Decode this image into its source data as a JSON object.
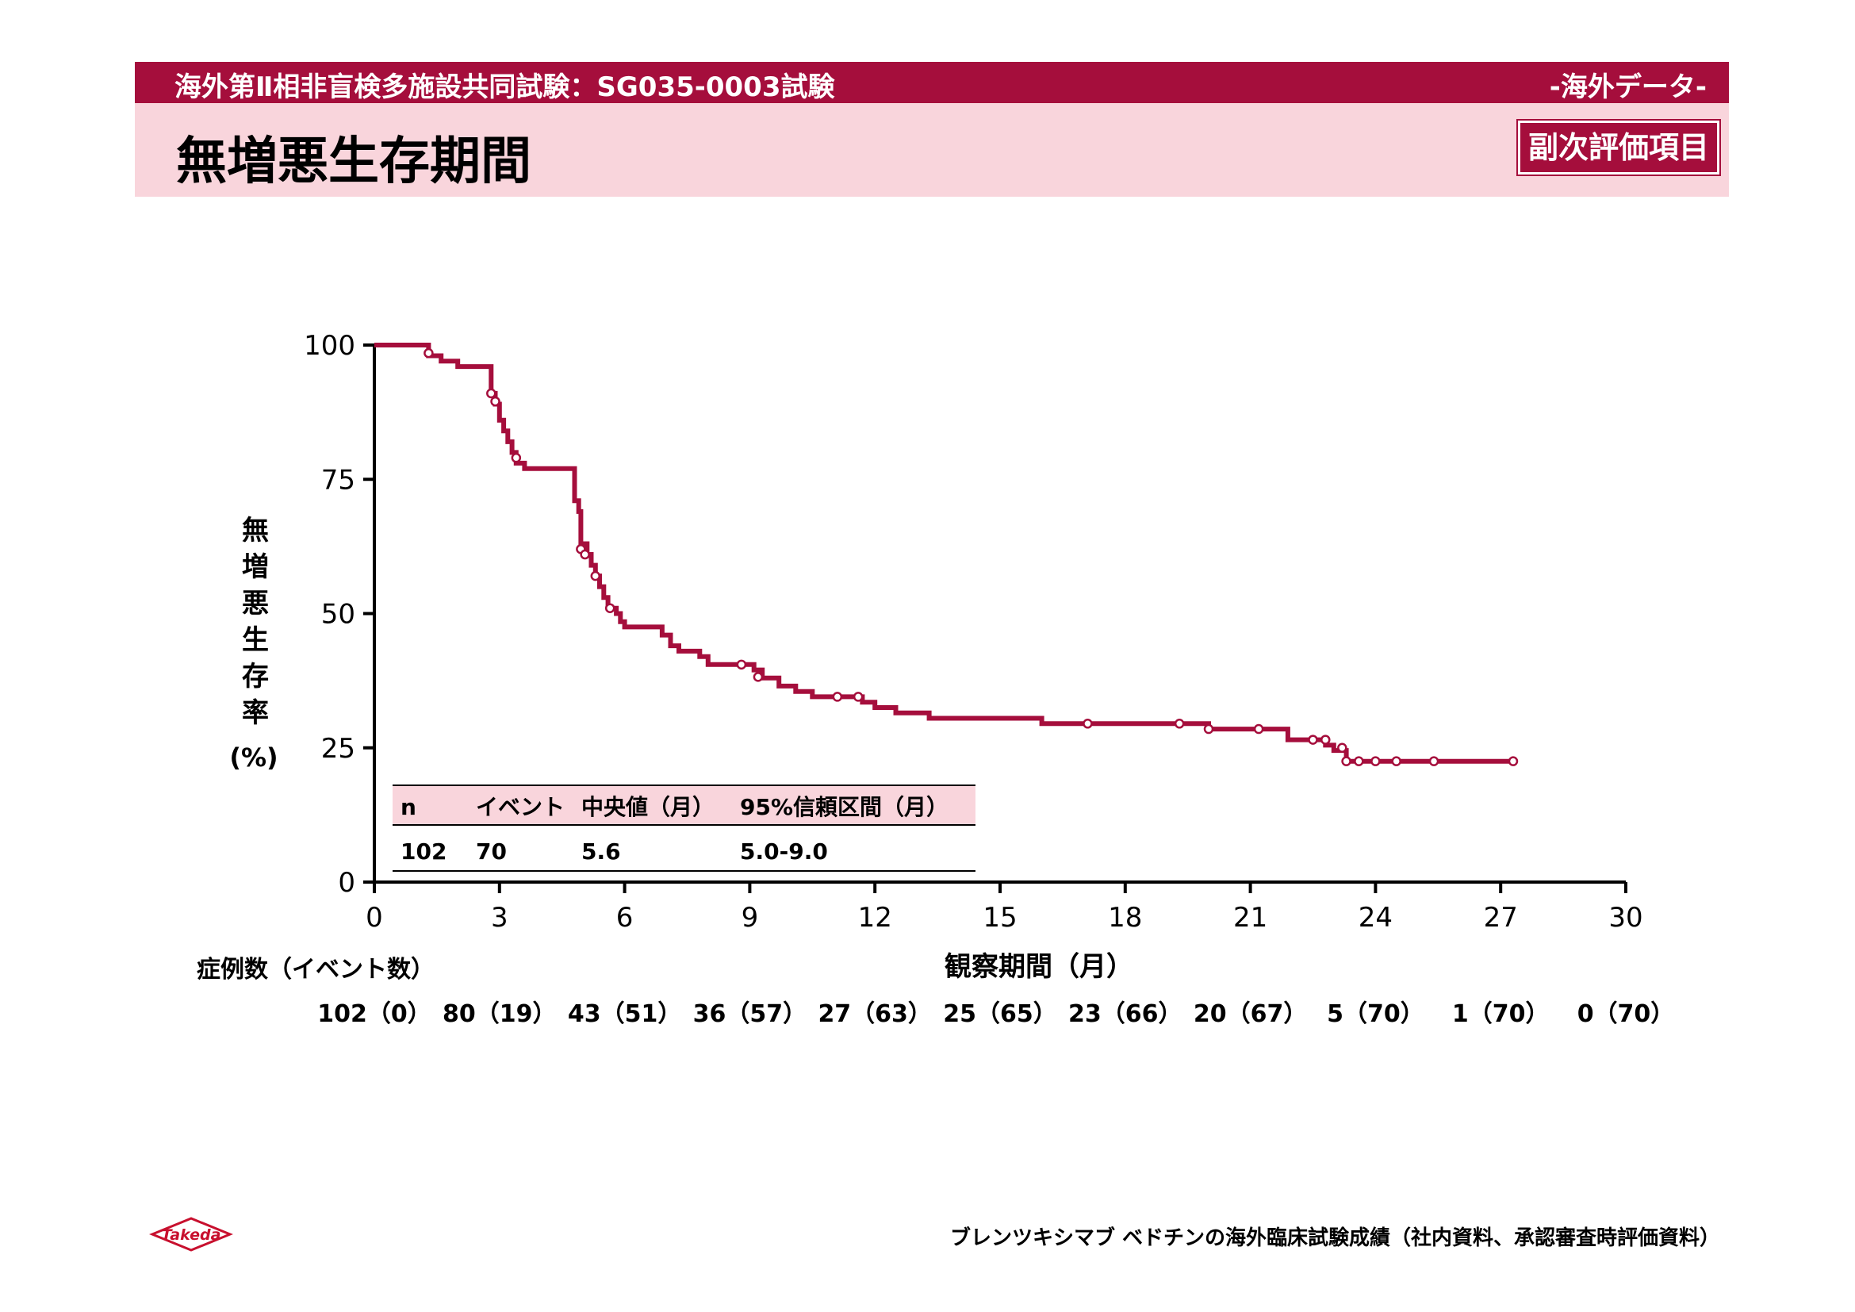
{
  "header": {
    "study": "海外第Ⅱ相非盲検多施設共同試験：SG035-0003試験",
    "tag": "-海外データ-",
    "title": "無増悪生存期間",
    "badge": "副次評価項目"
  },
  "chart_data": {
    "type": "line",
    "subtype": "kaplan-meier",
    "ylabel": "無増悪生存率",
    "ylabel_unit": "(%)",
    "xlabel": "観察期間（月）",
    "xlim": [
      0,
      30
    ],
    "ylim": [
      0,
      100
    ],
    "xticks": [
      0,
      3,
      6,
      9,
      12,
      15,
      18,
      21,
      24,
      27,
      30
    ],
    "yticks": [
      0,
      25,
      50,
      75,
      100
    ],
    "line_color": "#a50e3c",
    "series": [
      {
        "values": [
          [
            0,
            100
          ],
          [
            1.3,
            100
          ],
          [
            1.3,
            98
          ],
          [
            1.6,
            98
          ],
          [
            1.6,
            97
          ],
          [
            2.0,
            97
          ],
          [
            2.0,
            96
          ],
          [
            2.8,
            96
          ],
          [
            2.8,
            91
          ],
          [
            2.9,
            91
          ],
          [
            2.9,
            89
          ],
          [
            3.0,
            89
          ],
          [
            3.0,
            86
          ],
          [
            3.1,
            86
          ],
          [
            3.1,
            84
          ],
          [
            3.2,
            84
          ],
          [
            3.2,
            82
          ],
          [
            3.3,
            82
          ],
          [
            3.3,
            80
          ],
          [
            3.4,
            80
          ],
          [
            3.4,
            78
          ],
          [
            3.6,
            78
          ],
          [
            3.6,
            77
          ],
          [
            4.8,
            77
          ],
          [
            4.8,
            71
          ],
          [
            4.9,
            71
          ],
          [
            4.9,
            69
          ],
          [
            4.95,
            69
          ],
          [
            4.95,
            63
          ],
          [
            5.1,
            63
          ],
          [
            5.1,
            61
          ],
          [
            5.2,
            61
          ],
          [
            5.2,
            59
          ],
          [
            5.3,
            59
          ],
          [
            5.3,
            57
          ],
          [
            5.4,
            57
          ],
          [
            5.4,
            55
          ],
          [
            5.5,
            55
          ],
          [
            5.5,
            53
          ],
          [
            5.6,
            53
          ],
          [
            5.6,
            51
          ],
          [
            5.8,
            51
          ],
          [
            5.8,
            50
          ],
          [
            5.9,
            50
          ],
          [
            5.9,
            48.5
          ],
          [
            6.0,
            48.5
          ],
          [
            6.0,
            47.5
          ],
          [
            6.9,
            47.5
          ],
          [
            6.9,
            46
          ],
          [
            7.1,
            46
          ],
          [
            7.1,
            44
          ],
          [
            7.3,
            44
          ],
          [
            7.3,
            43
          ],
          [
            7.8,
            43
          ],
          [
            7.8,
            42
          ],
          [
            8.0,
            42
          ],
          [
            8.0,
            40.5
          ],
          [
            9.1,
            40.5
          ],
          [
            9.1,
            39.5
          ],
          [
            9.3,
            39.5
          ],
          [
            9.3,
            38
          ],
          [
            9.7,
            38
          ],
          [
            9.7,
            36.5
          ],
          [
            10.1,
            36.5
          ],
          [
            10.1,
            35.5
          ],
          [
            10.5,
            35.5
          ],
          [
            10.5,
            34.5
          ],
          [
            11.7,
            34.5
          ],
          [
            11.7,
            33.5
          ],
          [
            12.0,
            33.5
          ],
          [
            12.0,
            32.5
          ],
          [
            12.5,
            32.5
          ],
          [
            12.5,
            31.5
          ],
          [
            13.3,
            31.5
          ],
          [
            13.3,
            30.5
          ],
          [
            16.0,
            30.5
          ],
          [
            16.0,
            29.5
          ],
          [
            20.0,
            29.5
          ],
          [
            20.0,
            28.5
          ],
          [
            21.9,
            28.5
          ],
          [
            21.9,
            26.5
          ],
          [
            22.8,
            26.5
          ],
          [
            22.8,
            25.5
          ],
          [
            23.0,
            25.5
          ],
          [
            23.0,
            24.5
          ],
          [
            23.3,
            24.5
          ],
          [
            23.3,
            22.5
          ],
          [
            27.3,
            22.5
          ]
        ],
        "censored": [
          [
            1.3,
            98.5
          ],
          [
            2.8,
            91
          ],
          [
            2.9,
            89.5
          ],
          [
            3.4,
            79
          ],
          [
            4.95,
            62
          ],
          [
            5.05,
            61
          ],
          [
            5.3,
            57
          ],
          [
            5.65,
            51
          ],
          [
            8.8,
            40.5
          ],
          [
            9.2,
            38.2
          ],
          [
            11.1,
            34.5
          ],
          [
            11.6,
            34.5
          ],
          [
            17.1,
            29.5
          ],
          [
            19.3,
            29.5
          ],
          [
            20.0,
            28.5
          ],
          [
            21.2,
            28.5
          ],
          [
            22.5,
            26.5
          ],
          [
            22.8,
            26.5
          ],
          [
            23.2,
            25
          ],
          [
            23.3,
            22.5
          ],
          [
            23.6,
            22.5
          ],
          [
            24.0,
            22.5
          ],
          [
            24.5,
            22.5
          ],
          [
            25.4,
            22.5
          ],
          [
            27.3,
            22.5
          ]
        ]
      }
    ],
    "summary_table": {
      "headers": [
        "n",
        "イベント",
        "中央値（月）",
        "95%信頼区間（月）"
      ],
      "row": [
        "102",
        "70",
        "5.6",
        "5.0-9.0"
      ]
    },
    "at_risk": {
      "label": "症例数（イベント数）",
      "values": [
        "102（0）",
        "80（19）",
        "43（51）",
        "36（57）",
        "27（63）",
        "25（65）",
        "23（66）",
        "20（67）",
        "5（70）",
        "1（70）",
        "0（70）"
      ]
    }
  },
  "footer": {
    "note": "ブレンツキシマブ ベドチンの海外臨床試験成績（社内資料、承認審査時評価資料）",
    "logo_text": "Takeda"
  }
}
